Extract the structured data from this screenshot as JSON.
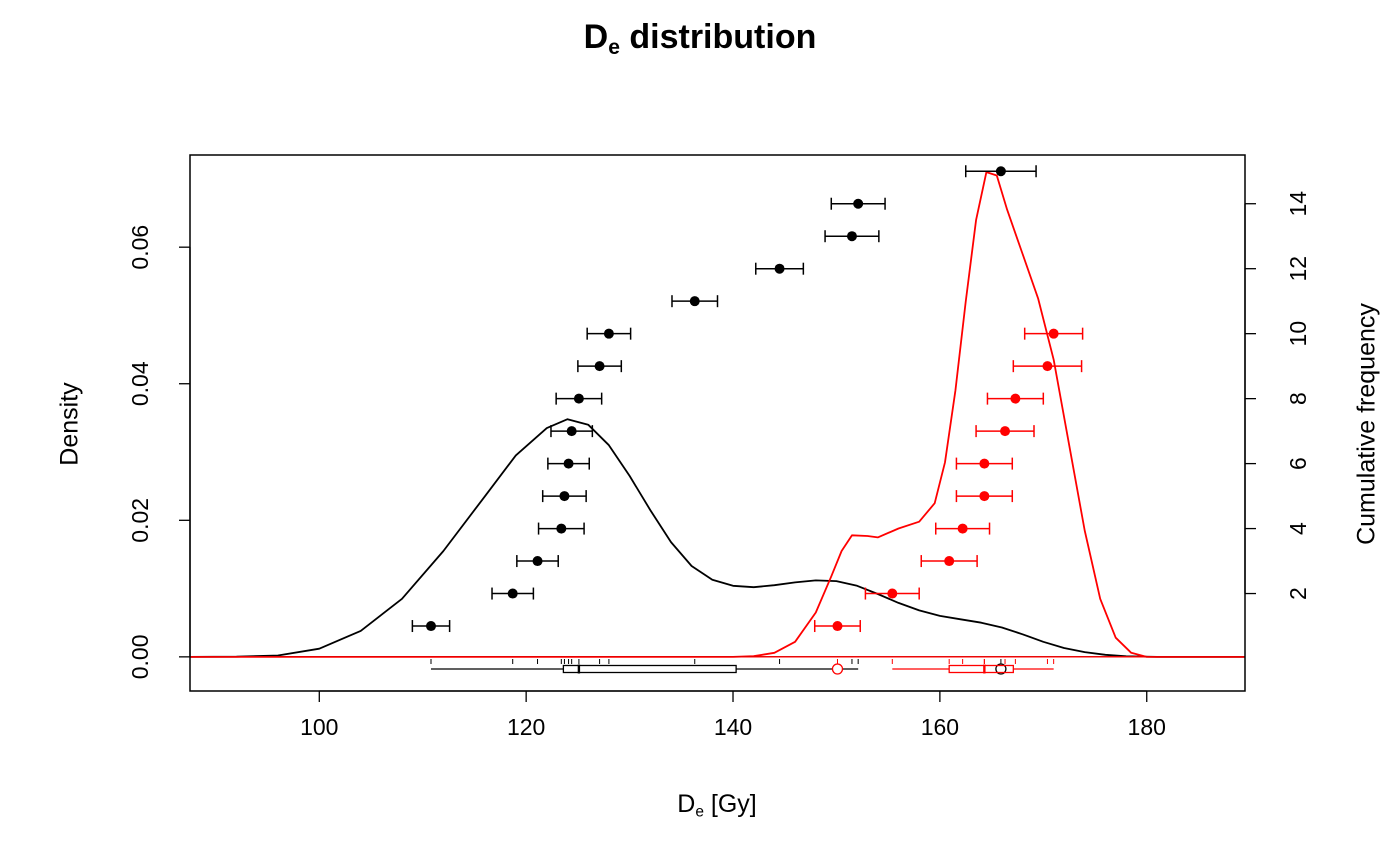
{
  "chart_data": {
    "type": "scatter",
    "title": {
      "main": "D",
      "sub": "e",
      "rest": " distribution"
    },
    "xlabel": {
      "main": "D",
      "sub": "e",
      "rest": " [Gy]"
    },
    "ylabel_left": "Density",
    "ylabel_right": "Cumulative frequency",
    "xlim": [
      87.5,
      189.5
    ],
    "ylim_density": [
      -0.005,
      0.0735
    ],
    "ylim_cumulative": [
      -1.0,
      15.5
    ],
    "x_ticks": [
      "100",
      "120",
      "140",
      "160",
      "180"
    ],
    "x_tick_values": [
      100,
      120,
      140,
      160,
      180
    ],
    "density_ticks": [
      "0.00",
      "0.02",
      "0.04",
      "0.06"
    ],
    "density_tick_values": [
      0,
      0.02,
      0.04,
      0.06
    ],
    "cumulative_ticks": [
      "2",
      "4",
      "6",
      "8",
      "10",
      "12",
      "14"
    ],
    "cumulative_tick_values": [
      2,
      4,
      6,
      8,
      10,
      12,
      14
    ],
    "grid": false,
    "colors": {
      "series1": "#000000",
      "series2": "#ff0000"
    },
    "series": [
      {
        "color": "#000000",
        "points": [
          {
            "x": 110.8,
            "y": 1,
            "xerr": 1.8
          },
          {
            "x": 118.7,
            "y": 2,
            "xerr": 2.0
          },
          {
            "x": 121.1,
            "y": 3,
            "xerr": 2.0
          },
          {
            "x": 123.4,
            "y": 4,
            "xerr": 2.2
          },
          {
            "x": 123.7,
            "y": 5,
            "xerr": 2.1
          },
          {
            "x": 124.1,
            "y": 6,
            "xerr": 2.0
          },
          {
            "x": 124.4,
            "y": 7,
            "xerr": 2.0
          },
          {
            "x": 125.1,
            "y": 8,
            "xerr": 2.2
          },
          {
            "x": 127.1,
            "y": 9,
            "xerr": 2.1
          },
          {
            "x": 128.0,
            "y": 10,
            "xerr": 2.1
          },
          {
            "x": 136.3,
            "y": 11,
            "xerr": 2.2
          },
          {
            "x": 144.5,
            "y": 12,
            "xerr": 2.3
          },
          {
            "x": 151.5,
            "y": 13,
            "xerr": 2.6
          },
          {
            "x": 152.1,
            "y": 14,
            "xerr": 2.6
          },
          {
            "x": 165.9,
            "y": 15,
            "xerr": 3.4
          }
        ],
        "density": [
          [
            87.5,
            0.0
          ],
          [
            92,
            3e-05
          ],
          [
            96,
            0.0002
          ],
          [
            100,
            0.0012
          ],
          [
            104,
            0.0038
          ],
          [
            108,
            0.0085
          ],
          [
            112,
            0.0155
          ],
          [
            116,
            0.0235
          ],
          [
            119,
            0.0295
          ],
          [
            122,
            0.0335
          ],
          [
            124,
            0.0348
          ],
          [
            126,
            0.034
          ],
          [
            128,
            0.031
          ],
          [
            130,
            0.0265
          ],
          [
            132,
            0.0215
          ],
          [
            134,
            0.0168
          ],
          [
            136,
            0.0133
          ],
          [
            138,
            0.0113
          ],
          [
            140,
            0.0104
          ],
          [
            142,
            0.0102
          ],
          [
            144,
            0.0105
          ],
          [
            146,
            0.0109
          ],
          [
            148,
            0.0112
          ],
          [
            150,
            0.0111
          ],
          [
            152,
            0.0104
          ],
          [
            154,
            0.0092
          ],
          [
            156,
            0.0079
          ],
          [
            158,
            0.0068
          ],
          [
            160,
            0.006
          ],
          [
            162,
            0.0055
          ],
          [
            164,
            0.005
          ],
          [
            166,
            0.0043
          ],
          [
            168,
            0.0033
          ],
          [
            170,
            0.0022
          ],
          [
            172,
            0.0013
          ],
          [
            174,
            0.0007
          ],
          [
            176,
            0.0003
          ],
          [
            178,
            8e-05
          ],
          [
            181,
            0.0
          ],
          [
            189.5,
            0.0
          ]
        ],
        "boxplot": {
          "min": 110.8,
          "q1": 123.6,
          "median": 125.1,
          "q3": 140.3,
          "max": 152.1,
          "outliers": [
            165.9
          ]
        }
      },
      {
        "color": "#ff0000",
        "points": [
          {
            "x": 150.1,
            "y": 1,
            "xerr": 2.2
          },
          {
            "x": 155.4,
            "y": 2,
            "xerr": 2.6
          },
          {
            "x": 160.9,
            "y": 3,
            "xerr": 2.7
          },
          {
            "x": 162.2,
            "y": 4,
            "xerr": 2.6
          },
          {
            "x": 164.3,
            "y": 5,
            "xerr": 2.7
          },
          {
            "x": 164.3,
            "y": 6,
            "xerr": 2.7
          },
          {
            "x": 166.3,
            "y": 7,
            "xerr": 2.8
          },
          {
            "x": 167.3,
            "y": 8,
            "xerr": 2.7
          },
          {
            "x": 170.4,
            "y": 9,
            "xerr": 3.3
          },
          {
            "x": 171.0,
            "y": 10,
            "xerr": 2.8
          }
        ],
        "density": [
          [
            87.5,
            0.0
          ],
          [
            140,
            0.0
          ],
          [
            142,
            0.0001
          ],
          [
            144,
            0.0006
          ],
          [
            146,
            0.0022
          ],
          [
            148,
            0.0065
          ],
          [
            149.5,
            0.0118
          ],
          [
            150.5,
            0.0155
          ],
          [
            151.5,
            0.0178
          ],
          [
            153,
            0.0177
          ],
          [
            154,
            0.0175
          ],
          [
            156,
            0.0188
          ],
          [
            158,
            0.0198
          ],
          [
            159.5,
            0.0225
          ],
          [
            160.5,
            0.0285
          ],
          [
            161.5,
            0.039
          ],
          [
            162.5,
            0.052
          ],
          [
            163.5,
            0.064
          ],
          [
            164.5,
            0.071
          ],
          [
            165.5,
            0.0705
          ],
          [
            166.5,
            0.0655
          ],
          [
            168,
            0.059
          ],
          [
            169.5,
            0.0525
          ],
          [
            171,
            0.0435
          ],
          [
            172.5,
            0.031
          ],
          [
            174,
            0.0185
          ],
          [
            175.5,
            0.0085
          ],
          [
            177,
            0.0028
          ],
          [
            178.5,
            0.0006
          ],
          [
            180,
            0.0
          ],
          [
            189.5,
            0.0
          ]
        ],
        "boxplot": {
          "min": 155.4,
          "q1": 160.9,
          "median": 164.3,
          "q3": 167.1,
          "max": 171.0,
          "outliers": [
            150.1
          ]
        }
      }
    ]
  }
}
